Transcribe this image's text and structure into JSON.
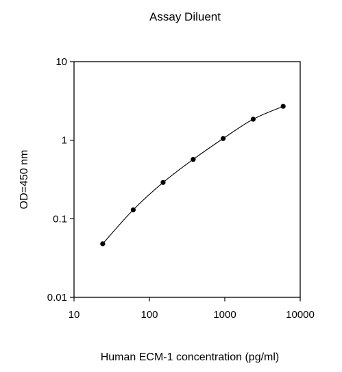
{
  "chart_data": {
    "type": "scatter",
    "title": "Assay Diluent",
    "xlabel": "Human ECM-1 concentration (pg/ml)",
    "ylabel": "OD=450 nm",
    "xscale": "log",
    "yscale": "log",
    "xlim": [
      10,
      10000
    ],
    "ylim": [
      0.01,
      10
    ],
    "x_ticks": [
      10,
      100,
      1000,
      10000
    ],
    "x_tick_labels": [
      "10",
      "100",
      "1000",
      "10000"
    ],
    "y_ticks": [
      0.01,
      0.1,
      1,
      10
    ],
    "y_tick_labels": [
      "0.01",
      "0.1",
      "1",
      "10"
    ],
    "grid": false,
    "legend": "none",
    "series": [
      {
        "points": [
          {
            "x": 24,
            "y": 0.048
          },
          {
            "x": 61,
            "y": 0.13
          },
          {
            "x": 152,
            "y": 0.29
          },
          {
            "x": 381,
            "y": 0.57
          },
          {
            "x": 951,
            "y": 1.05
          },
          {
            "x": 2378,
            "y": 1.85
          },
          {
            "x": 5945,
            "y": 2.7
          }
        ],
        "marker": "circle",
        "color": "#000000",
        "fit_line": true
      }
    ]
  }
}
